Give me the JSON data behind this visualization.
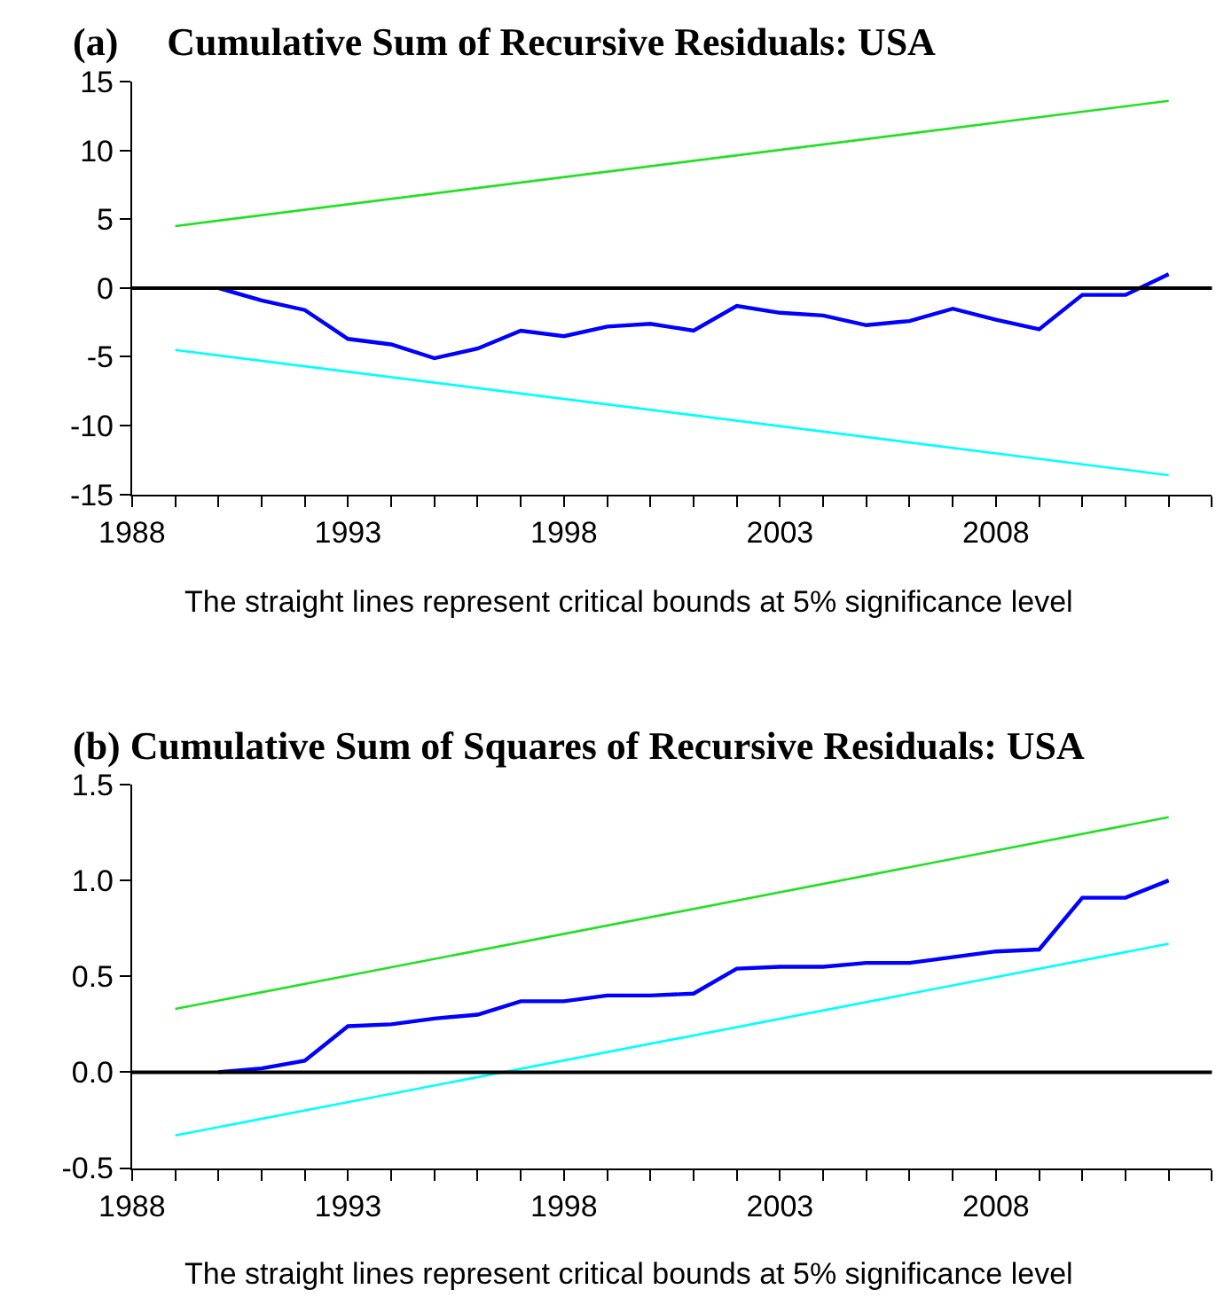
{
  "chart_data": [
    {
      "type": "line",
      "title": "(a)     Cumulative Sum of Recursive Residuals: USA",
      "marker": "none",
      "line_style": "solid",
      "xlim": [
        1988,
        2013
      ],
      "xticks": [
        1988,
        {
          "value": 1989,
          "label": null
        },
        {
          "value": 1990,
          "label": null
        },
        {
          "value": 1991,
          "label": null
        },
        {
          "value": 1992,
          "label": null
        },
        1993,
        {
          "value": 1994,
          "label": null
        },
        {
          "value": 1995,
          "label": null
        },
        {
          "value": 1996,
          "label": null
        },
        {
          "value": 1997,
          "label": null
        },
        1998,
        {
          "value": 1999,
          "label": null
        },
        {
          "value": 2000,
          "label": null
        },
        {
          "value": 2001,
          "label": null
        },
        {
          "value": 2002,
          "label": null
        },
        2003,
        {
          "value": 2004,
          "label": null
        },
        {
          "value": 2005,
          "label": null
        },
        {
          "value": 2006,
          "label": null
        },
        {
          "value": 2007,
          "label": null
        },
        2008,
        {
          "value": 2009,
          "label": null
        },
        {
          "value": 2010,
          "label": null
        },
        {
          "value": 2011,
          "label": null
        },
        {
          "value": 2012,
          "label": null
        },
        {
          "value": 2013,
          "label": null
        }
      ],
      "ylim": [
        -15,
        15
      ],
      "yticks": [
        -15,
        -10,
        -5,
        0,
        5,
        10,
        15
      ],
      "ref_lines": [
        {
          "axis": "y",
          "value": 0,
          "color": "#000000"
        }
      ],
      "annotations": [
        "The straight lines represent critical bounds at 5% significance level"
      ],
      "series": [
        {
          "color": "#0000ff",
          "x": [
            1990,
            1991,
            1992,
            1993,
            1994,
            1995,
            1996,
            1997,
            1998,
            1999,
            2000,
            2001,
            2002,
            2003,
            2004,
            2005,
            2006,
            2007,
            2008,
            2009,
            2010,
            2011,
            2012
          ],
          "values": [
            0,
            -0.9,
            -1.6,
            -3.7,
            -4.1,
            -5.1,
            -4.4,
            -3.1,
            -3.5,
            -2.8,
            -2.6,
            -3.1,
            -1.3,
            -1.8,
            -2.0,
            -2.7,
            -2.4,
            -1.5,
            -2.3,
            -3.0,
            -0.5,
            -0.5,
            1.0
          ]
        },
        {
          "color": "#22e022",
          "x": [
            1989,
            2012
          ],
          "values": [
            4.5,
            13.6
          ]
        },
        {
          "color": "#00ffff",
          "x": [
            1989,
            2012
          ],
          "values": [
            -4.5,
            -13.6
          ]
        }
      ]
    },
    {
      "type": "line",
      "title": "(b) Cumulative Sum of Squares of Recursive Residuals: USA",
      "marker": "none",
      "line_style": "solid",
      "xlim": [
        1988,
        2013
      ],
      "xticks": [
        1988,
        {
          "value": 1989,
          "label": null
        },
        {
          "value": 1990,
          "label": null
        },
        {
          "value": 1991,
          "label": null
        },
        {
          "value": 1992,
          "label": null
        },
        1993,
        {
          "value": 1994,
          "label": null
        },
        {
          "value": 1995,
          "label": null
        },
        {
          "value": 1996,
          "label": null
        },
        {
          "value": 1997,
          "label": null
        },
        1998,
        {
          "value": 1999,
          "label": null
        },
        {
          "value": 2000,
          "label": null
        },
        {
          "value": 2001,
          "label": null
        },
        {
          "value": 2002,
          "label": null
        },
        2003,
        {
          "value": 2004,
          "label": null
        },
        {
          "value": 2005,
          "label": null
        },
        {
          "value": 2006,
          "label": null
        },
        {
          "value": 2007,
          "label": null
        },
        2008,
        {
          "value": 2009,
          "label": null
        },
        {
          "value": 2010,
          "label": null
        },
        {
          "value": 2011,
          "label": null
        },
        {
          "value": 2012,
          "label": null
        },
        {
          "value": 2013,
          "label": null
        }
      ],
      "ylim": [
        -0.5,
        1.5
      ],
      "yticks": [
        {
          "value": -0.5,
          "label": "-0.5"
        },
        {
          "value": 0,
          "label": "0.0"
        },
        {
          "value": 0.5,
          "label": "0.5"
        },
        {
          "value": 1,
          "label": "1.0"
        },
        {
          "value": 1.5,
          "label": "1.5"
        }
      ],
      "ref_lines": [
        {
          "axis": "y",
          "value": 0,
          "color": "#000000"
        }
      ],
      "annotations": [
        "The straight lines represent critical bounds at 5% significance level"
      ],
      "series": [
        {
          "color": "#0000ff",
          "x": [
            1990,
            1991,
            1992,
            1993,
            1994,
            1995,
            1996,
            1997,
            1998,
            1999,
            2000,
            2001,
            2002,
            2003,
            2004,
            2005,
            2006,
            2007,
            2008,
            2009,
            2010,
            2011,
            2012
          ],
          "values": [
            0,
            0.02,
            0.06,
            0.24,
            0.25,
            0.28,
            0.3,
            0.37,
            0.37,
            0.4,
            0.4,
            0.41,
            0.54,
            0.55,
            0.55,
            0.57,
            0.57,
            0.6,
            0.63,
            0.64,
            0.91,
            0.91,
            1.0
          ]
        },
        {
          "color": "#22e022",
          "x": [
            1989,
            2012
          ],
          "values": [
            0.33,
            1.33
          ]
        },
        {
          "color": "#00ffff",
          "x": [
            1989,
            2012
          ],
          "values": [
            -0.33,
            0.67
          ]
        }
      ]
    }
  ]
}
